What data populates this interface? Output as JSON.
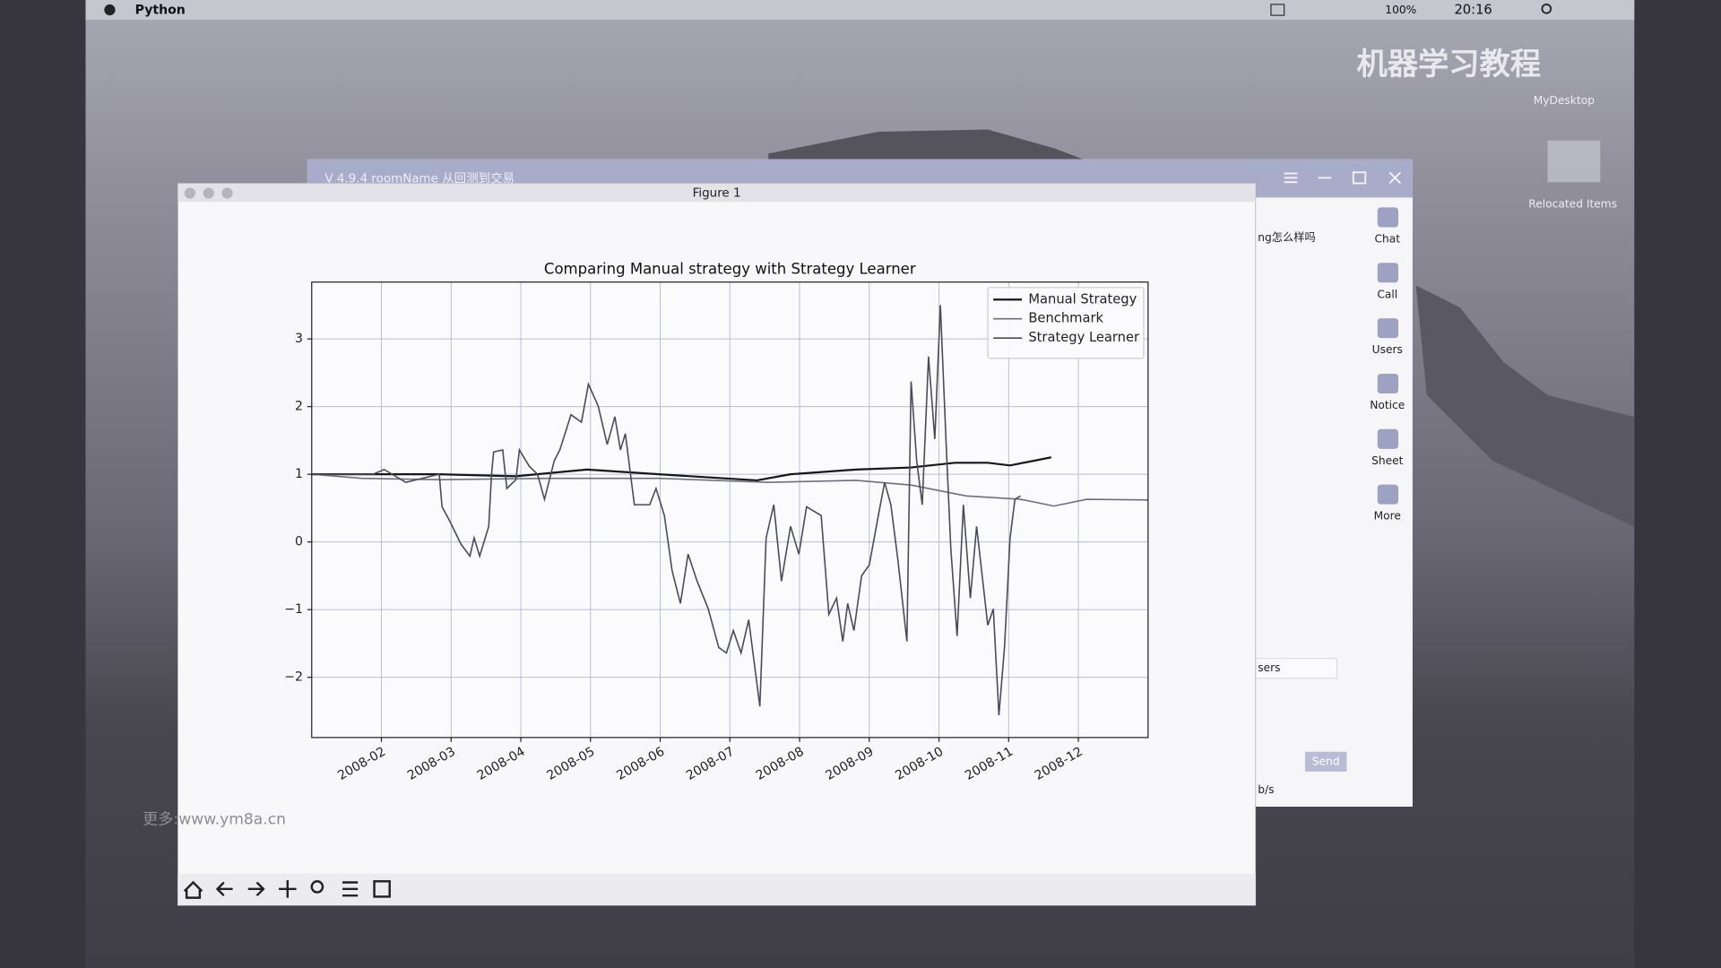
{
  "menu_bar": {
    "app": "Python",
    "battery": "100%",
    "time": "20:16"
  },
  "desktop": {
    "watermark": "机器学习教程",
    "icons": [
      "MyDesktop",
      "Relocated Items"
    ]
  },
  "chat_window": {
    "title": "V 4.9.4  roomName  从回测到交易",
    "message": "ng怎么样吗",
    "selector": "sers",
    "send": "Send",
    "status": "b/s",
    "sidebar": [
      "Chat",
      "Call",
      "Users",
      "Notice",
      "Sheet",
      "More"
    ]
  },
  "figure_window": {
    "title": "Figure 1",
    "caption": "更多:www.ym8a.cn"
  },
  "chart_data": {
    "type": "line",
    "title": "Comparing Manual strategy with Strategy Learner",
    "xlim": [
      0,
      12
    ],
    "ylim": [
      -2.89,
      3.84
    ],
    "xticks": [
      {
        "value": 1,
        "label": "2008-02"
      },
      {
        "value": 2,
        "label": "2008-03"
      },
      {
        "value": 3,
        "label": "2008-04"
      },
      {
        "value": 4,
        "label": "2008-05"
      },
      {
        "value": 5,
        "label": "2008-06"
      },
      {
        "value": 6,
        "label": "2008-07"
      },
      {
        "value": 7,
        "label": "2008-08"
      },
      {
        "value": 8,
        "label": "2008-09"
      },
      {
        "value": 9,
        "label": "2008-10"
      },
      {
        "value": 10,
        "label": "2008-11"
      },
      {
        "value": 11,
        "label": "2008-12"
      }
    ],
    "yticks": [
      {
        "value": -2,
        "label": "−2"
      },
      {
        "value": -1,
        "label": "−1"
      },
      0,
      1,
      2,
      3
    ],
    "grid": true,
    "legend": "upper right",
    "series": [
      {
        "name": "Manual Strategy",
        "color": "#15151c",
        "x": [
          0,
          1.83,
          2.93,
          3.95,
          4.98,
          5.92,
          6.39,
          6.87,
          7.81,
          8.6,
          9.23,
          9.7,
          10.02,
          10.61
        ],
        "values": [
          1.0,
          1.0,
          0.97,
          1.07,
          1.0,
          0.94,
          0.91,
          1.0,
          1.07,
          1.1,
          1.17,
          1.17,
          1.13,
          1.25
        ]
      },
      {
        "name": "Benchmark",
        "color": "#6e6e80",
        "x": [
          0,
          0.72,
          1.83,
          3.4,
          4.98,
          6.55,
          7.81,
          8.6,
          9.39,
          10.17,
          10.65,
          11.12,
          12.0
        ],
        "values": [
          1.0,
          0.94,
          0.92,
          0.94,
          0.94,
          0.88,
          0.91,
          0.84,
          0.68,
          0.63,
          0.53,
          0.63,
          0.62
        ]
      },
      {
        "name": "Strategy Learner",
        "color": "#4a4a5a",
        "x": [
          0,
          0.88,
          1.04,
          1.35,
          1.83,
          1.87,
          1.98,
          2.14,
          2.27,
          2.33,
          2.41,
          2.54,
          2.58,
          2.61,
          2.74,
          2.8,
          2.93,
          2.98,
          3.12,
          3.24,
          3.34,
          3.48,
          3.56,
          3.72,
          3.87,
          3.97,
          4.11,
          4.24,
          4.35,
          4.43,
          4.5,
          4.63,
          4.85,
          4.94,
          5.06,
          5.17,
          5.29,
          5.4,
          5.53,
          5.69,
          5.84,
          5.95,
          6.05,
          6.16,
          6.27,
          6.43,
          6.52,
          6.63,
          6.74,
          6.87,
          6.99,
          7.1,
          7.31,
          7.42,
          7.53,
          7.62,
          7.69,
          7.78,
          7.89,
          8.0,
          8.13,
          8.22,
          8.31,
          8.41,
          8.54,
          8.6,
          8.68,
          8.76,
          8.85,
          8.94,
          9.02,
          9.1,
          9.17,
          9.26,
          9.35,
          9.45,
          9.54,
          9.7,
          9.78,
          9.86,
          9.94,
          10.02,
          10.09,
          10.17
        ],
        "values": [
          1.0,
          1.0,
          1.07,
          0.88,
          1.0,
          0.52,
          0.31,
          -0.03,
          -0.21,
          0.06,
          -0.21,
          0.23,
          1.0,
          1.33,
          1.36,
          0.79,
          0.92,
          1.36,
          1.12,
          1.0,
          0.63,
          1.2,
          1.36,
          1.88,
          1.77,
          2.33,
          2.01,
          1.44,
          1.85,
          1.36,
          1.6,
          0.55,
          0.55,
          0.79,
          0.39,
          -0.42,
          -0.91,
          -0.18,
          -0.58,
          -0.99,
          -1.56,
          -1.64,
          -1.31,
          -1.64,
          -1.15,
          -2.43,
          0.06,
          0.55,
          -0.58,
          0.23,
          -0.18,
          0.52,
          0.39,
          -1.07,
          -0.83,
          -1.47,
          -0.91,
          -1.31,
          -0.5,
          -0.34,
          0.39,
          0.88,
          0.55,
          -0.26,
          -1.47,
          2.37,
          1.2,
          0.55,
          2.74,
          1.52,
          3.5,
          1.52,
          -0.1,
          -1.39,
          0.55,
          -0.83,
          0.23,
          -1.23,
          -0.99,
          -2.56,
          -1.56,
          0.06,
          0.63,
          0.68
        ]
      }
    ]
  }
}
